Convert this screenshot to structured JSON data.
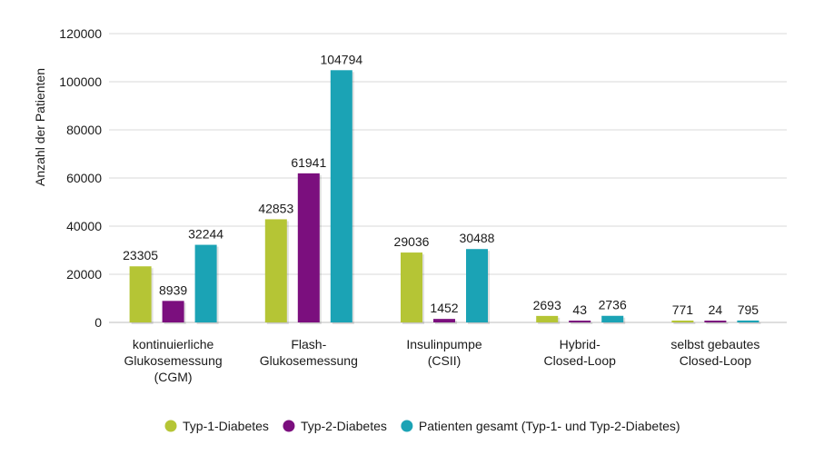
{
  "chart_data": {
    "type": "bar",
    "title": "",
    "xlabel": "",
    "ylabel": "Anzahl der Patienten",
    "ylim": [
      0,
      120000
    ],
    "yticks": [
      0,
      20000,
      40000,
      60000,
      80000,
      100000,
      120000
    ],
    "grid": true,
    "legend_position": "bottom",
    "categories": [
      [
        "kontinuierliche",
        "Glukosemessung",
        "(CGM)"
      ],
      [
        "Flash-",
        "Glukosemessung"
      ],
      [
        "Insulinpumpe",
        "(CSII)"
      ],
      [
        "Hybrid-",
        "Closed-Loop"
      ],
      [
        "selbst gebautes",
        "Closed-Loop"
      ]
    ],
    "series": [
      {
        "name": "Typ-1-Diabetes",
        "color": "#b5c535",
        "values": [
          23305,
          42853,
          29036,
          2693,
          771
        ],
        "labels": [
          "23305",
          "42853",
          "29036",
          "2693",
          "771"
        ]
      },
      {
        "name": "Typ-2-Diabetes",
        "color": "#7b0f7e",
        "values": [
          8939,
          61941,
          1452,
          43,
          24
        ],
        "labels": [
          "8939",
          "61941",
          "1452",
          "43",
          "24"
        ]
      },
      {
        "name": "Patienten gesamt (Typ-1- und Typ-2-Diabetes)",
        "color": "#1ba3b5",
        "values": [
          32244,
          104794,
          30488,
          2736,
          795
        ],
        "labels": [
          "32244",
          "104794",
          "30488",
          "2736",
          "795"
        ]
      }
    ]
  }
}
